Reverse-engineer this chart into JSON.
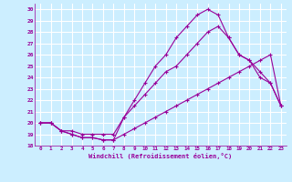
{
  "xlabel": "Windchill (Refroidissement éolien,°C)",
  "bg_color": "#cceeff",
  "line_color": "#990099",
  "grid_color": "#ffffff",
  "xlim": [
    -0.5,
    23.5
  ],
  "ylim": [
    18,
    30.5
  ],
  "yticks": [
    18,
    19,
    20,
    21,
    22,
    23,
    24,
    25,
    26,
    27,
    28,
    29,
    30
  ],
  "xticks": [
    0,
    1,
    2,
    3,
    4,
    5,
    6,
    7,
    8,
    9,
    10,
    11,
    12,
    13,
    14,
    15,
    16,
    17,
    18,
    19,
    20,
    21,
    22,
    23
  ],
  "line1_x": [
    0,
    1,
    2,
    3,
    4,
    5,
    6,
    7,
    8,
    9,
    10,
    11,
    12,
    13,
    14,
    15,
    16,
    17,
    18,
    19,
    20,
    21,
    22,
    23
  ],
  "line1_y": [
    20,
    20,
    19.3,
    19.0,
    18.7,
    18.7,
    18.5,
    18.5,
    19.0,
    19.5,
    20.0,
    20.5,
    21.0,
    21.5,
    22.0,
    22.5,
    23.0,
    23.5,
    24.0,
    24.5,
    25.0,
    25.5,
    26.0,
    21.5
  ],
  "line2_x": [
    0,
    1,
    2,
    3,
    4,
    5,
    6,
    7,
    8,
    9,
    10,
    11,
    12,
    13,
    14,
    15,
    16,
    17,
    18,
    19,
    20,
    21,
    22,
    23
  ],
  "line2_y": [
    20,
    20,
    19.3,
    19.3,
    19.0,
    19.0,
    19.0,
    19.0,
    20.5,
    21.5,
    22.5,
    23.5,
    24.5,
    25.0,
    26.0,
    27.0,
    28.0,
    28.5,
    27.5,
    26.0,
    25.5,
    24.0,
    23.5,
    21.5
  ],
  "line3_x": [
    0,
    1,
    2,
    3,
    4,
    5,
    6,
    7,
    8,
    9,
    10,
    11,
    12,
    13,
    14,
    15,
    16,
    17,
    18,
    19,
    20,
    21,
    22,
    23
  ],
  "line3_y": [
    20,
    20,
    19.3,
    19.0,
    18.7,
    18.7,
    18.5,
    18.5,
    20.5,
    22.0,
    23.5,
    25.0,
    26.0,
    27.5,
    28.5,
    29.5,
    30.0,
    29.5,
    27.5,
    26.0,
    25.5,
    24.5,
    23.5,
    21.5
  ]
}
